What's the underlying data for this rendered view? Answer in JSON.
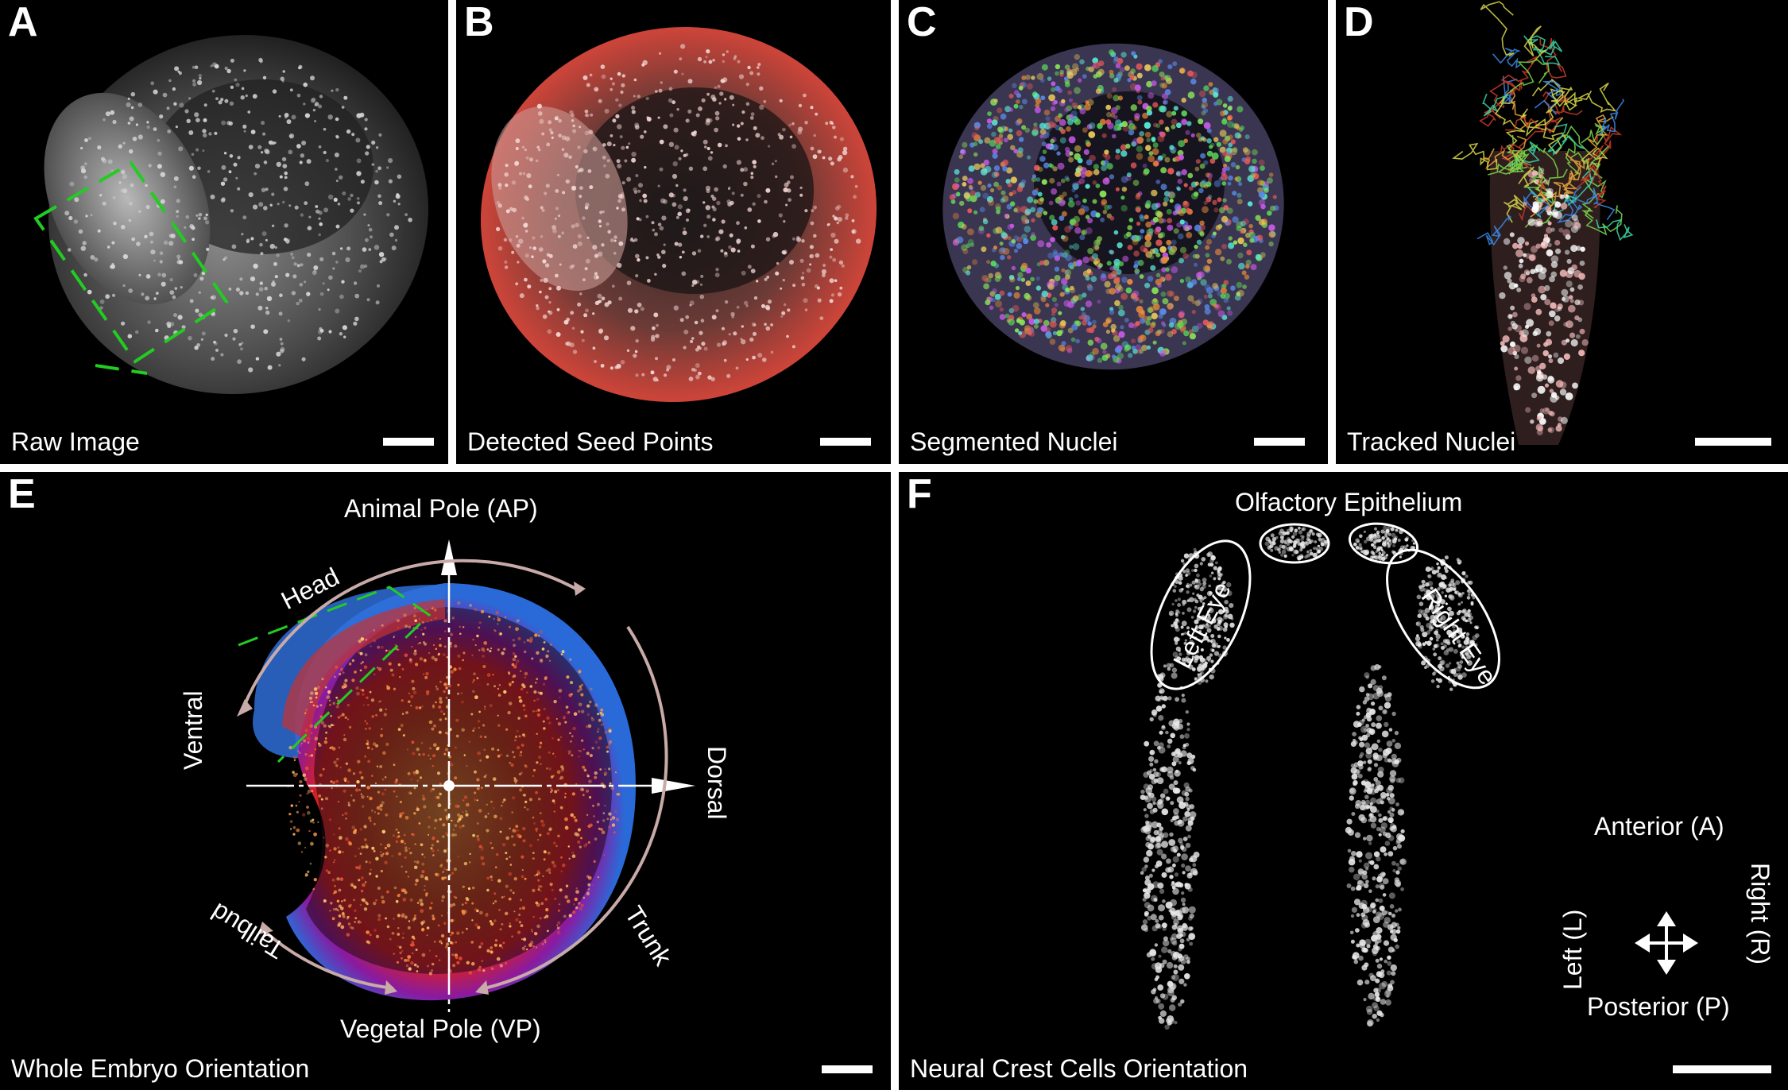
{
  "panels": {
    "a": {
      "letter": "A",
      "caption": "Raw Image"
    },
    "b": {
      "letter": "B",
      "caption": "Detected Seed Points"
    },
    "c": {
      "letter": "C",
      "caption": "Segmented Nuclei"
    },
    "d": {
      "letter": "D",
      "caption": "Tracked Nuclei"
    },
    "e": {
      "letter": "E",
      "caption": "Whole Embryo Orientation",
      "animal_pole": "Animal Pole (AP)",
      "vegetal_pole": "Vegetal Pole (VP)",
      "ventral": "Ventral",
      "dorsal": "Dorsal",
      "head": "Head",
      "trunk": "Trunk",
      "tailbud": "Tailbud"
    },
    "f": {
      "letter": "F",
      "caption": "Neural Crest Cells Orientation",
      "olfactory": "Olfactory Epithelium",
      "left_eye": "Left Eye",
      "right_eye": "Right Eye",
      "anterior": "Anterior (A)",
      "posterior": "Posterior (P)",
      "left": "Left (L)",
      "right": "Right (R)"
    }
  },
  "colors": {
    "background": "#000000",
    "divider": "#ffffff",
    "roi_dash": "#22cc22",
    "seed_red": "#e8473a",
    "arrow_arc": "#c8aaa8"
  }
}
